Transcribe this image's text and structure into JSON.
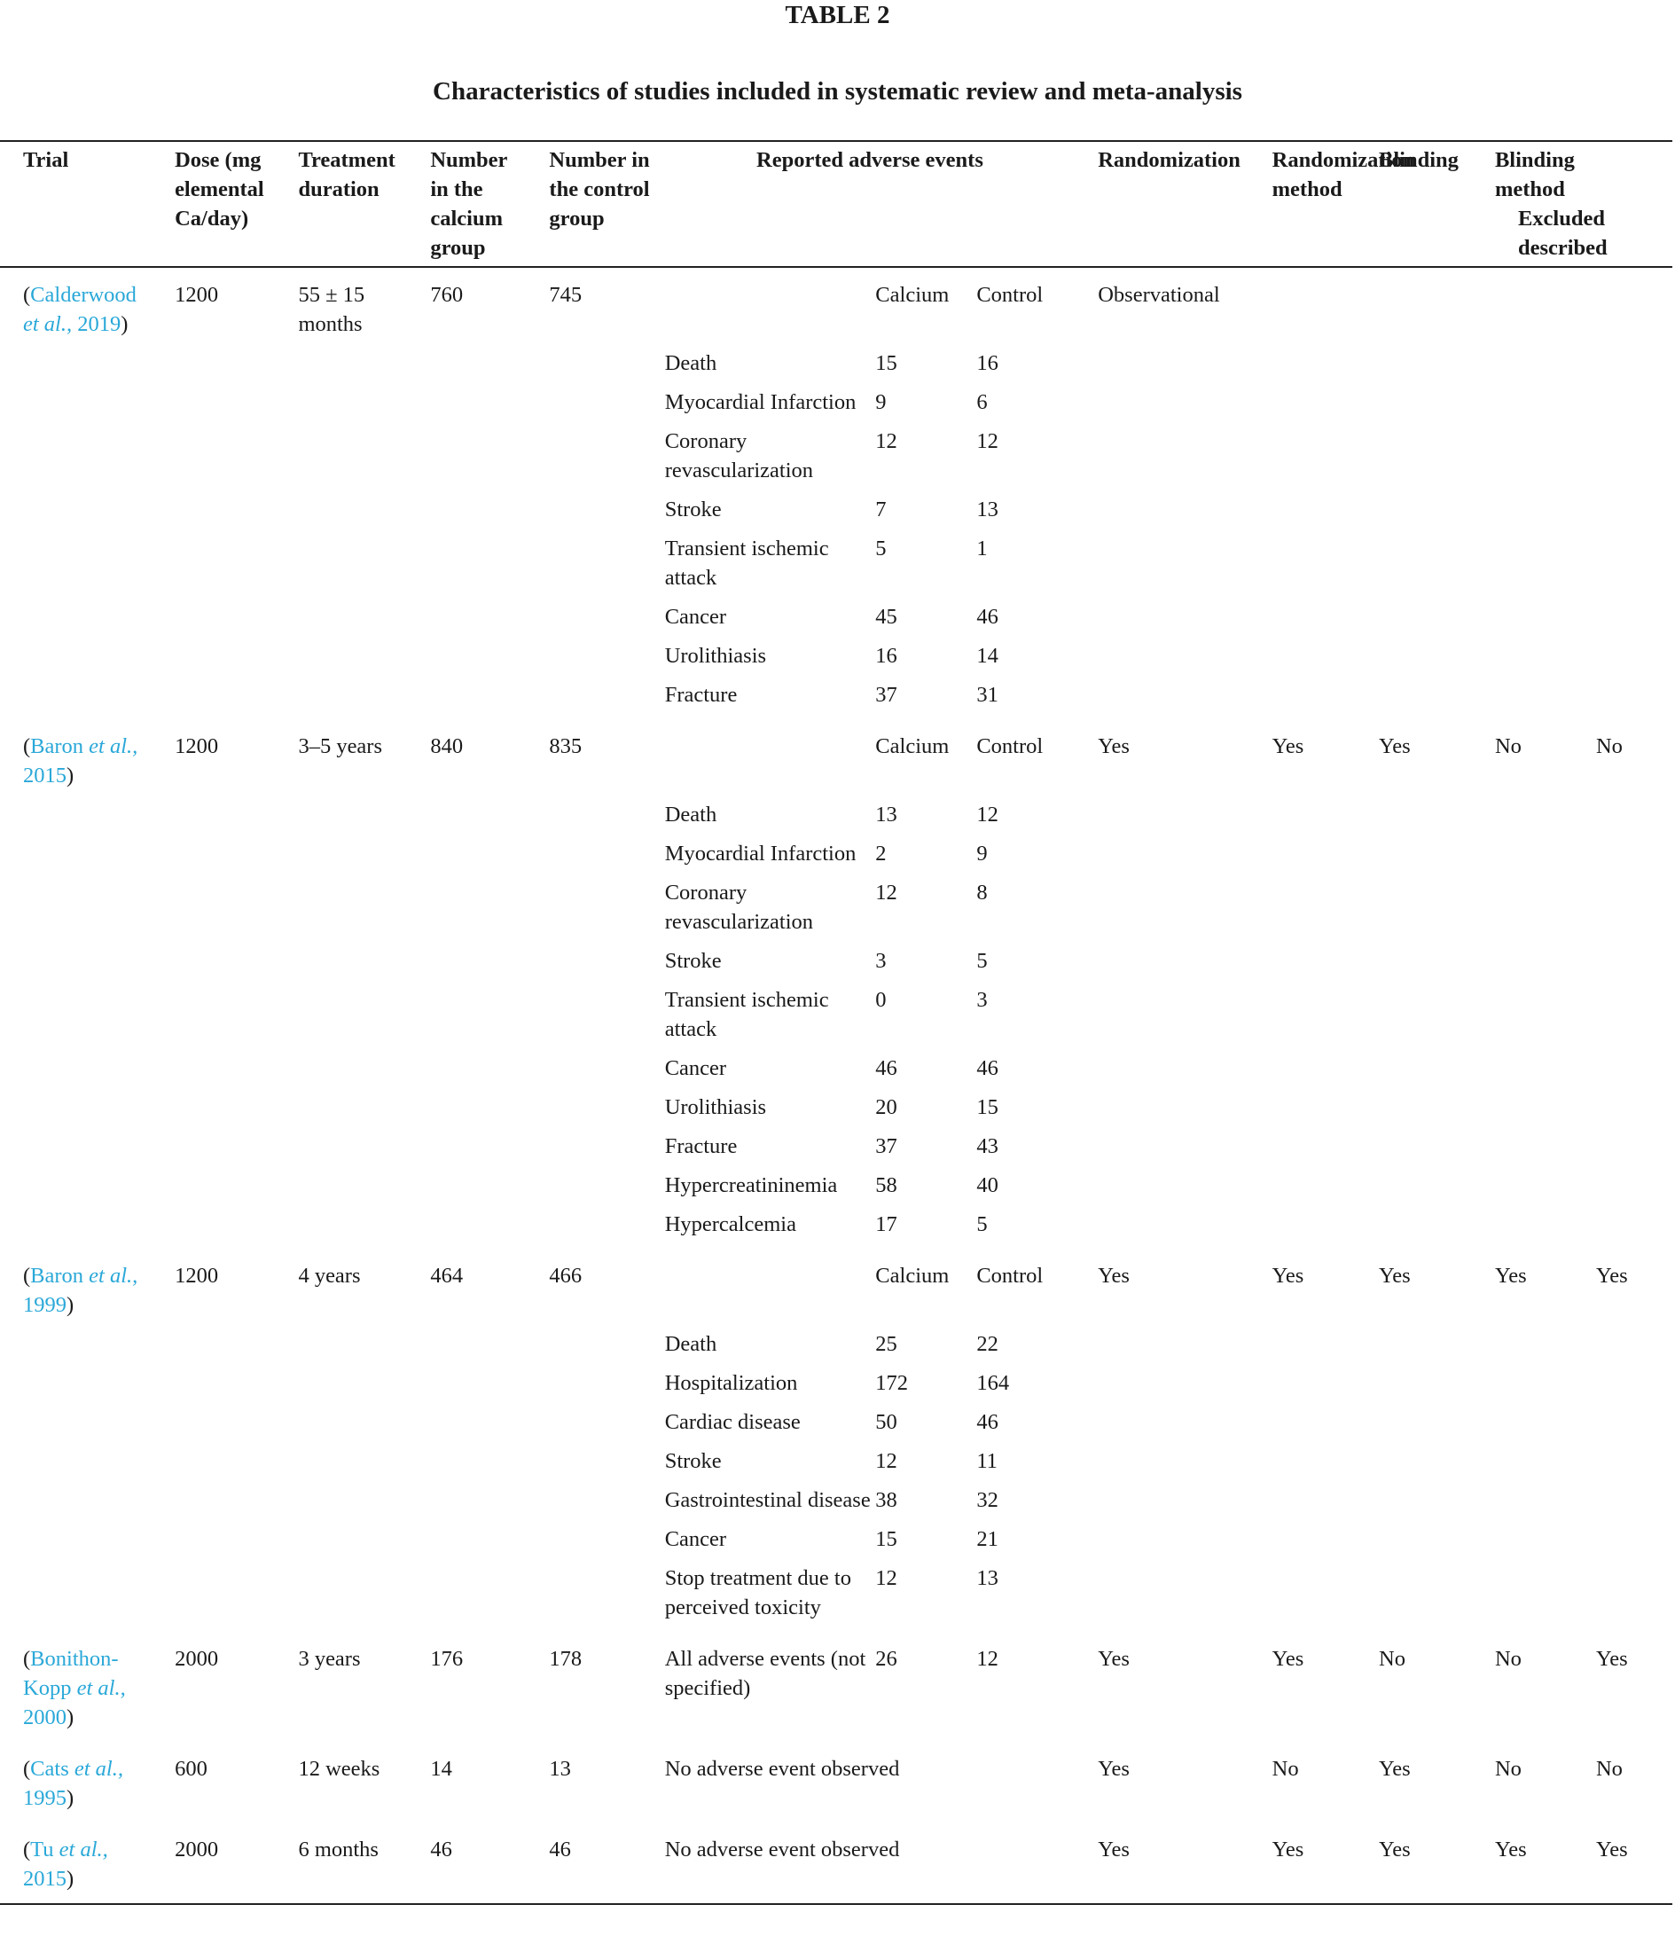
{
  "table_label": "TABLE 2",
  "table_title": "Characteristics of studies included in systematic review and meta-analysis",
  "headers": {
    "trial": "Trial",
    "dose": "Dose (mg elemental Ca/day)",
    "duration": "Treatment duration",
    "n_calcium": "Number in the calcium group",
    "n_control": "Number in the control group",
    "events": "Reported adverse events",
    "randomization": "Randomization",
    "rand_method": "Randomization method",
    "blinding": "Blinding",
    "blind_method": "Blinding method",
    "excluded": "Excluded described"
  },
  "studies": [
    {
      "ref_pre": "(",
      "ref_author": "Calderwood",
      "ref_etal": "et al.,",
      "ref_year": "2019",
      "ref_post": ")",
      "dose": "1200",
      "duration": "55 ± 15 months",
      "n_calcium": "760",
      "n_control": "745",
      "calcium_head": "Calcium",
      "control_head": "Control",
      "randomization": "Observational",
      "rand_method": "",
      "blinding": "",
      "blind_method": "",
      "excluded": "",
      "events": [
        {
          "name": "Death",
          "calcium": "15",
          "control": "16"
        },
        {
          "name": "Myocardial Infarction",
          "calcium": "9",
          "control": "6"
        },
        {
          "name": "Coronary revascularization",
          "calcium": "12",
          "control": "12"
        },
        {
          "name": "Stroke",
          "calcium": "7",
          "control": "13"
        },
        {
          "name": "Transient ischemic attack",
          "calcium": "5",
          "control": "1"
        },
        {
          "name": "Cancer",
          "calcium": "45",
          "control": "46"
        },
        {
          "name": "Urolithiasis",
          "calcium": "16",
          "control": "14"
        },
        {
          "name": "Fracture",
          "calcium": "37",
          "control": "31"
        }
      ]
    },
    {
      "ref_pre": "(",
      "ref_author": "Baron",
      "ref_etal": "et al.,",
      "ref_year": "2015",
      "ref_post": ")",
      "dose": "1200",
      "duration": "3–5 years",
      "n_calcium": "840",
      "n_control": "835",
      "calcium_head": "Calcium",
      "control_head": "Control",
      "randomization": "Yes",
      "rand_method": "Yes",
      "blinding": "Yes",
      "blind_method": "No",
      "excluded": "No",
      "events": [
        {
          "name": "Death",
          "calcium": "13",
          "control": "12"
        },
        {
          "name": "Myocardial Infarction",
          "calcium": "2",
          "control": "9"
        },
        {
          "name": "Coronary revascularization",
          "calcium": "12",
          "control": "8"
        },
        {
          "name": "Stroke",
          "calcium": "3",
          "control": "5"
        },
        {
          "name": "Transient ischemic attack",
          "calcium": "0",
          "control": "3"
        },
        {
          "name": "Cancer",
          "calcium": "46",
          "control": "46"
        },
        {
          "name": "Urolithiasis",
          "calcium": "20",
          "control": "15"
        },
        {
          "name": "Fracture",
          "calcium": "37",
          "control": "43"
        },
        {
          "name": "Hypercreatininemia",
          "calcium": "58",
          "control": "40"
        },
        {
          "name": "Hypercalcemia",
          "calcium": "17",
          "control": "5"
        }
      ]
    },
    {
      "ref_pre": "(",
      "ref_author": "Baron",
      "ref_etal": "et al.,",
      "ref_year": "1999",
      "ref_post": ")",
      "dose": "1200",
      "duration": "4 years",
      "n_calcium": "464",
      "n_control": "466",
      "calcium_head": "Calcium",
      "control_head": "Control",
      "randomization": "Yes",
      "rand_method": "Yes",
      "blinding": "Yes",
      "blind_method": "Yes",
      "excluded": "Yes",
      "events": [
        {
          "name": "Death",
          "calcium": "25",
          "control": "22"
        },
        {
          "name": "Hospitalization",
          "calcium": "172",
          "control": "164"
        },
        {
          "name": "Cardiac disease",
          "calcium": "50",
          "control": "46"
        },
        {
          "name": "Stroke",
          "calcium": "12",
          "control": "11"
        },
        {
          "name": "Gastrointestinal disease",
          "calcium": "38",
          "control": "32"
        },
        {
          "name": "Cancer",
          "calcium": "15",
          "control": "21"
        },
        {
          "name": "Stop treatment due to perceived toxicity",
          "calcium": "12",
          "control": "13"
        }
      ]
    }
  ],
  "simple_rows": [
    {
      "ref_pre": "(",
      "ref_author": "Bonithon-Kopp",
      "ref_etal": "et al.,",
      "ref_year": "2000",
      "ref_post": ")",
      "dose": "2000",
      "duration": "3 years",
      "n_calcium": "176",
      "n_control": "178",
      "event": "All adverse events (not specified)",
      "calcium": "26",
      "control": "12",
      "randomization": "Yes",
      "rand_method": "Yes",
      "blinding": "No",
      "blind_method": "No",
      "excluded": "Yes"
    },
    {
      "ref_pre": "(",
      "ref_author": "Cats",
      "ref_etal": "et al.,",
      "ref_year": "1995",
      "ref_post": ")",
      "dose": "600",
      "duration": "12 weeks",
      "n_calcium": "14",
      "n_control": "13",
      "event": "No adverse event observed",
      "calcium": "",
      "control": "",
      "randomization": "Yes",
      "rand_method": "No",
      "blinding": "Yes",
      "blind_method": "No",
      "excluded": "No"
    },
    {
      "ref_pre": "(",
      "ref_author": "Tu",
      "ref_etal": "et al.,",
      "ref_year": "2015",
      "ref_post": ")",
      "dose": "2000",
      "duration": "6 months",
      "n_calcium": "46",
      "n_control": "46",
      "event": "No adverse event observed",
      "calcium": "",
      "control": "",
      "randomization": "Yes",
      "rand_method": "Yes",
      "blinding": "Yes",
      "blind_method": "Yes",
      "excluded": "Yes"
    }
  ]
}
